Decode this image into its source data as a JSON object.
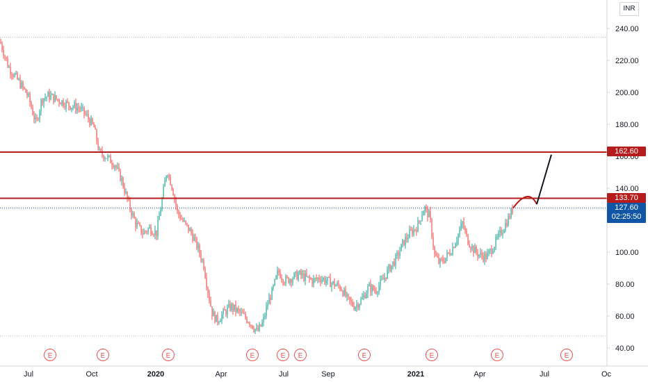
{
  "currency": "INR",
  "chart_data": {
    "type": "candlestick",
    "y_axis_ticks": [
      "240.00",
      "220.00",
      "200.00",
      "180.00",
      "160.00",
      "140.00",
      "120.00",
      "100.00",
      "80.00",
      "60.00",
      "40.00"
    ],
    "ylim": [
      40,
      240
    ],
    "x_axis_ticks": [
      {
        "label": "Jul",
        "bold": false
      },
      {
        "label": "Oct",
        "bold": false
      },
      {
        "label": "2020",
        "bold": true
      },
      {
        "label": "Apr",
        "bold": false
      },
      {
        "label": "Jul",
        "bold": false
      },
      {
        "label": "Sep",
        "bold": false
      },
      {
        "label": "2021",
        "bold": true
      },
      {
        "label": "Apr",
        "bold": false
      },
      {
        "label": "Jul",
        "bold": false
      },
      {
        "label": "Oc",
        "bold": false
      }
    ],
    "earnings_marker": "E",
    "earnings_count": 11,
    "horizontal_levels": [
      {
        "value": 162.6,
        "label": "162.60",
        "color": "#b71c1c"
      },
      {
        "value": 133.7,
        "label": "133.70",
        "color": "#b71c1c"
      }
    ],
    "dotted_levels": [
      234.5,
      47.5
    ],
    "last_price": {
      "value": 127.6,
      "label": "127.60",
      "countdown": "02:25:50",
      "color": "#1155a6"
    },
    "price_path_approx": [
      [
        0,
        232
      ],
      [
        12,
        216
      ],
      [
        25,
        208
      ],
      [
        40,
        198
      ],
      [
        52,
        180
      ],
      [
        60,
        196
      ],
      [
        70,
        198
      ],
      [
        85,
        195
      ],
      [
        100,
        192
      ],
      [
        115,
        190
      ],
      [
        125,
        185
      ],
      [
        135,
        178
      ],
      [
        143,
        162
      ],
      [
        152,
        160
      ],
      [
        165,
        155
      ],
      [
        175,
        145
      ],
      [
        185,
        130
      ],
      [
        195,
        118
      ],
      [
        205,
        112
      ],
      [
        215,
        115
      ],
      [
        225,
        112
      ],
      [
        232,
        130
      ],
      [
        240,
        152
      ],
      [
        248,
        140
      ],
      [
        255,
        125
      ],
      [
        265,
        118
      ],
      [
        275,
        112
      ],
      [
        285,
        102
      ],
      [
        293,
        92
      ],
      [
        298,
        78
      ],
      [
        305,
        62
      ],
      [
        312,
        57
      ],
      [
        322,
        62
      ],
      [
        332,
        66
      ],
      [
        345,
        62
      ],
      [
        358,
        57
      ],
      [
        370,
        50
      ],
      [
        378,
        56
      ],
      [
        385,
        68
      ],
      [
        392,
        76
      ],
      [
        400,
        88
      ],
      [
        410,
        82
      ],
      [
        420,
        84
      ],
      [
        430,
        86
      ],
      [
        440,
        84
      ],
      [
        450,
        82
      ],
      [
        460,
        84
      ],
      [
        470,
        82
      ],
      [
        480,
        80
      ],
      [
        490,
        78
      ],
      [
        500,
        70
      ],
      [
        510,
        66
      ],
      [
        520,
        70
      ],
      [
        530,
        78
      ],
      [
        540,
        76
      ],
      [
        550,
        82
      ],
      [
        560,
        90
      ],
      [
        570,
        96
      ],
      [
        580,
        106
      ],
      [
        590,
        112
      ],
      [
        600,
        116
      ],
      [
        610,
        128
      ],
      [
        618,
        122
      ],
      [
        625,
        98
      ],
      [
        632,
        93
      ],
      [
        640,
        96
      ],
      [
        650,
        102
      ],
      [
        658,
        110
      ],
      [
        665,
        118
      ],
      [
        672,
        108
      ],
      [
        680,
        102
      ],
      [
        690,
        98
      ],
      [
        700,
        97
      ],
      [
        710,
        104
      ],
      [
        720,
        112
      ],
      [
        730,
        120
      ],
      [
        738,
        127.6
      ]
    ],
    "projection_arrow": [
      [
        738,
        127.6
      ],
      [
        760,
        133.7
      ],
      [
        772,
        130
      ],
      [
        793,
        161
      ]
    ]
  }
}
